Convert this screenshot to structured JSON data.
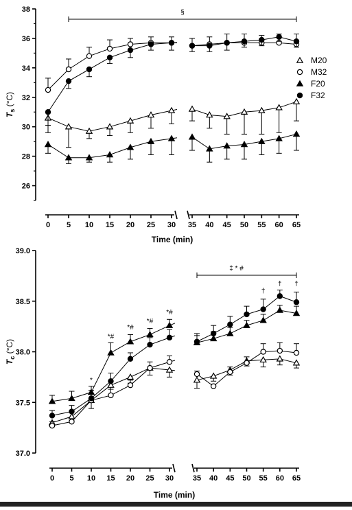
{
  "colors": {
    "ink": "#000000",
    "background": "#ffffff",
    "bottom_bar": "#222222"
  },
  "legend": {
    "placement": "right of top panel",
    "entries": [
      {
        "series": "M20",
        "label": "M20",
        "marker": "open-triangle"
      },
      {
        "series": "M32",
        "label": "M32",
        "marker": "open-circle"
      },
      {
        "series": "F20",
        "label": "F20",
        "marker": "filled-triangle"
      },
      {
        "series": "F32",
        "label": "F32",
        "marker": "filled-circle"
      }
    ]
  },
  "chart_data": [
    {
      "type": "line",
      "panel": "top",
      "ylabel_main": "T",
      "ylabel_sub": "s",
      "ylabel_unit": " (°C)",
      "xlabel": "Time (min)",
      "ylim": [
        25,
        38
      ],
      "yticks": [
        26,
        28,
        30,
        32,
        34,
        36,
        38
      ],
      "ytick_labels": [
        "26",
        "28",
        "30",
        "32",
        "34",
        "36",
        "38"
      ],
      "x_segments": [
        [
          0,
          30
        ],
        [
          35,
          65
        ]
      ],
      "xticks": [
        0,
        5,
        10,
        15,
        20,
        25,
        30,
        35,
        40,
        45,
        50,
        55,
        60,
        65
      ],
      "xtick_labels": [
        "0",
        "5",
        "10",
        "15",
        "20",
        "25",
        "30",
        "35",
        "40",
        "45",
        "50",
        "55",
        "60",
        "65"
      ],
      "grid": false,
      "series": [
        {
          "name": "M20",
          "marker": "open-triangle",
          "x": [
            0,
            5,
            10,
            15,
            20,
            25,
            30,
            35,
            40,
            45,
            50,
            55,
            60,
            65
          ],
          "y": [
            30.6,
            30.0,
            29.7,
            30.0,
            30.4,
            30.8,
            31.1,
            31.2,
            30.8,
            30.7,
            31.0,
            31.1,
            31.3,
            31.7
          ],
          "err": [
            0.5,
            1.4,
            0.5,
            0.6,
            0.8,
            0.9,
            0.9,
            0.8,
            0.9,
            1.2,
            1.5,
            1.6,
            1.7,
            1.3
          ]
        },
        {
          "name": "M32",
          "marker": "open-circle",
          "x": [
            0,
            5,
            10,
            15,
            20,
            25,
            30,
            35,
            40,
            45,
            50,
            55,
            60,
            65
          ],
          "y": [
            32.5,
            33.9,
            34.8,
            35.3,
            35.6,
            35.7,
            35.7,
            35.5,
            35.6,
            35.7,
            35.7,
            35.7,
            35.7,
            35.6
          ],
          "err": [
            0.8,
            0.7,
            0.6,
            0.6,
            0.4,
            0.4,
            0.4,
            0.5,
            0.5,
            0.6,
            0.6,
            0.5,
            0.6,
            0.7
          ]
        },
        {
          "name": "F20",
          "marker": "filled-triangle",
          "x": [
            0,
            5,
            10,
            15,
            20,
            25,
            30,
            35,
            40,
            45,
            50,
            55,
            60,
            65
          ],
          "y": [
            28.8,
            27.9,
            27.9,
            28.1,
            28.6,
            29.0,
            29.2,
            29.3,
            28.5,
            28.7,
            28.8,
            29.0,
            29.2,
            29.5
          ],
          "err": [
            0.6,
            0.4,
            0.3,
            0.5,
            0.8,
            0.9,
            1.1,
            0.9,
            0.9,
            0.9,
            1.0,
            0.9,
            1.0,
            1.1
          ]
        },
        {
          "name": "F32",
          "marker": "filled-circle",
          "x": [
            0,
            5,
            10,
            15,
            20,
            25,
            30,
            35,
            40,
            45,
            50,
            55,
            60,
            65
          ],
          "y": [
            31.0,
            33.1,
            33.9,
            34.7,
            35.2,
            35.6,
            35.7,
            35.5,
            35.5,
            35.7,
            35.8,
            35.9,
            36.1,
            35.8
          ],
          "err": [
            1.4,
            0.5,
            0.5,
            0.4,
            0.5,
            0.4,
            0.5,
            0.4,
            0.4,
            0.5,
            0.4,
            0.4,
            0.3,
            0.4
          ]
        }
      ],
      "annotations": [
        {
          "text": "§",
          "span": [
            5,
            65
          ]
        }
      ]
    },
    {
      "type": "line",
      "panel": "bottom",
      "ylabel_main": "T",
      "ylabel_sub": "c",
      "ylabel_unit": " (°C)",
      "xlabel": "Time (min)",
      "ylim": [
        37.0,
        39.0
      ],
      "yticks": [
        37.0,
        37.5,
        38.0,
        38.5,
        39.0
      ],
      "ytick_labels": [
        "37.0",
        "37.5",
        "38.0",
        "38.5",
        "39.0"
      ],
      "x_segments": [
        [
          0,
          30
        ],
        [
          35,
          65
        ]
      ],
      "xticks": [
        0,
        5,
        10,
        15,
        20,
        25,
        30,
        35,
        40,
        45,
        50,
        55,
        60,
        65
      ],
      "xtick_labels": [
        "0",
        "5",
        "10",
        "15",
        "20",
        "25",
        "30",
        "35",
        "40",
        "45",
        "50",
        "55",
        "60",
        "65"
      ],
      "grid": false,
      "series": [
        {
          "name": "M20",
          "marker": "open-triangle",
          "x": [
            0,
            5,
            10,
            15,
            20,
            25,
            30,
            35,
            40,
            45,
            50,
            55,
            60,
            65
          ],
          "y": [
            37.3,
            37.36,
            37.52,
            37.67,
            37.75,
            37.84,
            37.82,
            37.72,
            37.76,
            37.82,
            37.91,
            37.92,
            37.93,
            37.89
          ],
          "err": [
            0.04,
            0.04,
            0.08,
            0.1,
            0.06,
            0.07,
            0.07,
            0.08,
            0.05,
            0.05,
            0.05,
            0.07,
            0.06,
            0.05
          ]
        },
        {
          "name": "M32",
          "marker": "open-circle",
          "x": [
            0,
            5,
            10,
            15,
            20,
            25,
            30,
            35,
            40,
            45,
            50,
            55,
            60,
            65
          ],
          "y": [
            37.27,
            37.31,
            37.52,
            37.57,
            37.67,
            37.84,
            37.9,
            37.78,
            37.66,
            37.8,
            37.89,
            38.0,
            38.01,
            37.99
          ],
          "err": [
            0.04,
            0.03,
            0.06,
            0.06,
            0.05,
            0.06,
            0.06,
            0.03,
            0.02,
            0.05,
            0.06,
            0.08,
            0.08,
            0.09
          ]
        },
        {
          "name": "F20",
          "marker": "filled-triangle",
          "x": [
            0,
            5,
            10,
            15,
            20,
            25,
            30,
            35,
            40,
            45,
            50,
            55,
            60,
            65
          ],
          "y": [
            37.51,
            37.54,
            37.6,
            37.99,
            38.1,
            38.17,
            38.26,
            38.09,
            38.13,
            38.18,
            38.26,
            38.31,
            38.41,
            38.38
          ],
          "err": [
            0.06,
            0.07,
            0.06,
            0.1,
            0.07,
            0.06,
            0.06,
            0.07,
            0.07,
            0.06,
            0.05,
            0.06,
            0.05,
            0.07
          ]
        },
        {
          "name": "F32",
          "marker": "filled-circle",
          "x": [
            0,
            5,
            10,
            15,
            20,
            25,
            30,
            35,
            40,
            45,
            50,
            55,
            60,
            65
          ],
          "y": [
            37.37,
            37.41,
            37.54,
            37.71,
            37.93,
            38.07,
            38.14,
            38.1,
            38.18,
            38.27,
            38.37,
            38.42,
            38.55,
            38.49
          ],
          "err": [
            0.05,
            0.06,
            0.08,
            0.08,
            0.06,
            0.07,
            0.08,
            0.08,
            0.08,
            0.08,
            0.08,
            0.1,
            0.06,
            0.1
          ]
        }
      ],
      "annotations": [
        {
          "text": "‡ * #",
          "span": [
            35,
            65
          ]
        },
        {
          "text": "*",
          "x": 10,
          "y": 37.7
        },
        {
          "text": "*#",
          "x": 15,
          "y": 38.13
        },
        {
          "text": "*#",
          "x": 20,
          "y": 38.22
        },
        {
          "text": "*#",
          "x": 25,
          "y": 38.28
        },
        {
          "text": "*#",
          "x": 30,
          "y": 38.37
        },
        {
          "text": "†",
          "x": 55,
          "y": 38.58
        },
        {
          "text": "†",
          "x": 60,
          "y": 38.65
        },
        {
          "text": "†",
          "x": 65,
          "y": 38.65
        }
      ]
    }
  ]
}
